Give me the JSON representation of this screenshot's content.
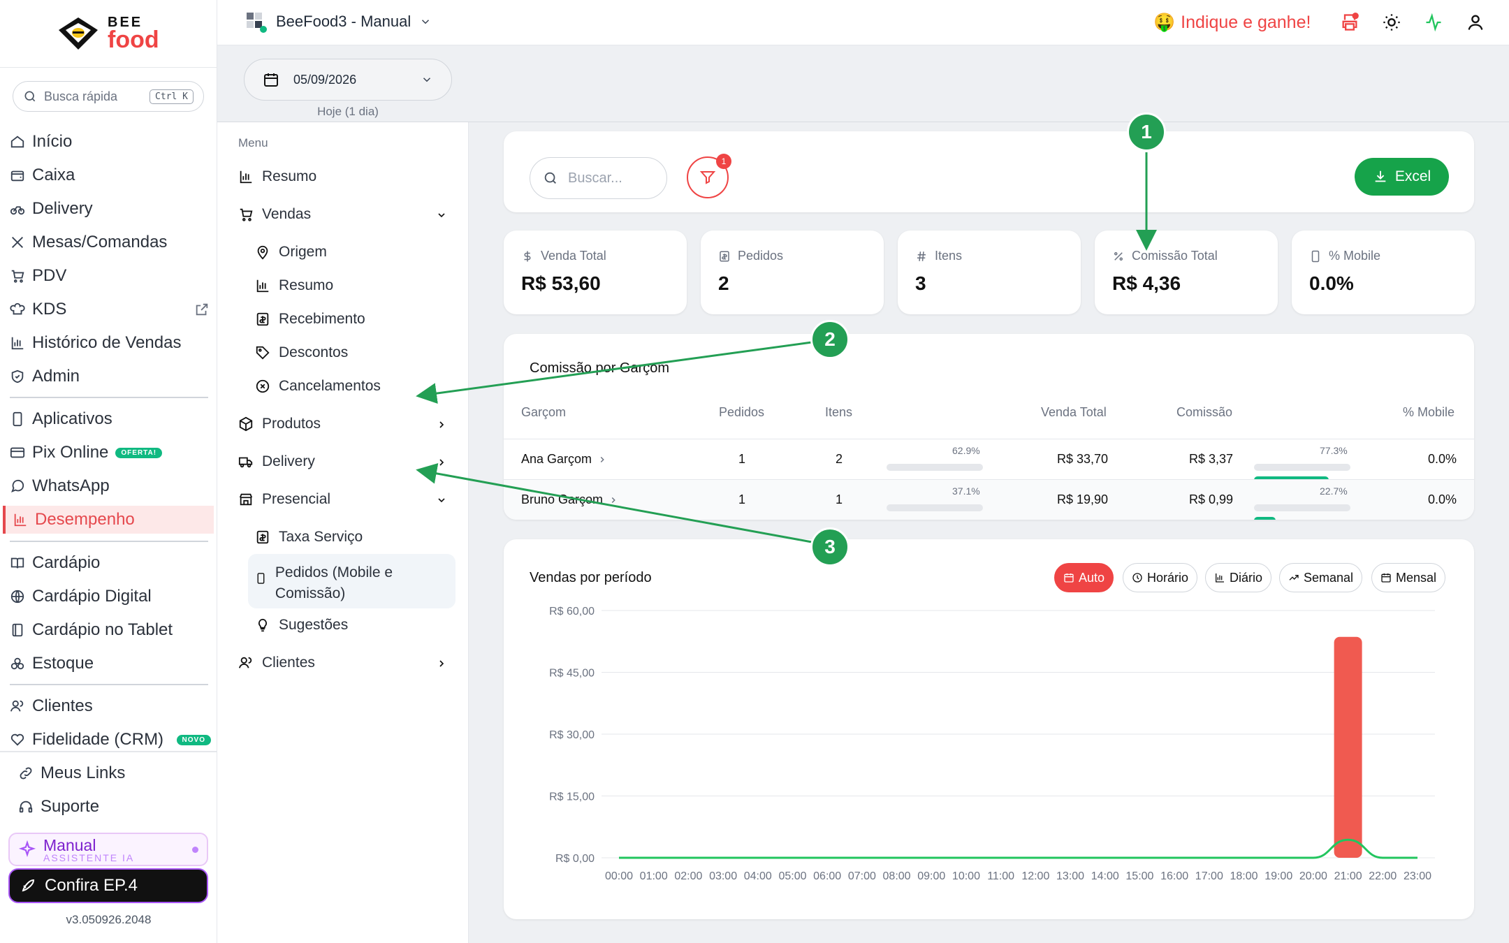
{
  "brand": {
    "top": "BEE",
    "bottom": "food"
  },
  "quick_search": {
    "placeholder": "Busca rápida",
    "shortcut": "Ctrl K"
  },
  "sidebar": {
    "items": [
      {
        "label": "Início",
        "icon": "home-icon"
      },
      {
        "label": "Caixa",
        "icon": "wallet-icon"
      },
      {
        "label": "Delivery",
        "icon": "bike-icon"
      },
      {
        "label": "Mesas/Comandas",
        "icon": "utensils-icon"
      },
      {
        "label": "PDV",
        "icon": "cart-icon"
      },
      {
        "label": "KDS",
        "icon": "chef-hat-icon"
      },
      {
        "label": "Histórico de Vendas",
        "icon": "bar-chart-icon"
      },
      {
        "label": "Admin",
        "icon": "shield-icon"
      },
      {
        "label": "Aplicativos",
        "icon": "smartphone-icon"
      },
      {
        "label": "Pix Online",
        "icon": "credit-card-icon",
        "tag": "OFERTA!"
      },
      {
        "label": "WhatsApp",
        "icon": "message-icon"
      },
      {
        "label": "Desempenho",
        "icon": "bar-chart-icon",
        "active": true
      },
      {
        "label": "Cardápio",
        "icon": "book-icon"
      },
      {
        "label": "Cardápio Digital",
        "icon": "globe-icon"
      },
      {
        "label": "Cardápio no Tablet",
        "icon": "tablet-icon"
      },
      {
        "label": "Estoque",
        "icon": "boxes-icon"
      },
      {
        "label": "Clientes",
        "icon": "users-icon"
      },
      {
        "label": "Fidelidade (CRM)",
        "icon": "heart-icon",
        "tag": "NOVO"
      }
    ],
    "bottom_links": [
      {
        "label": "Meus Links"
      },
      {
        "label": "Suporte"
      }
    ],
    "manual": {
      "title": "Manual",
      "subtitle": "ASSISTENTE IA"
    },
    "confira": "Confira EP.4",
    "version": "v3.050926.2048"
  },
  "topbar": {
    "store": "BeeFood3 - Manual",
    "refer": "Indique e ganhe!",
    "refer_emoji": "🤑"
  },
  "date": {
    "value": "05/09/2026",
    "hint": "Hoje (1 dia)"
  },
  "menu": {
    "heading": "Menu",
    "resumo": "Resumo",
    "vendas": "Vendas",
    "vendas_children": [
      "Origem",
      "Resumo",
      "Recebimento",
      "Descontos",
      "Cancelamentos"
    ],
    "produtos": "Produtos",
    "delivery": "Delivery",
    "presencial": "Presencial",
    "presencial_children": [
      "Taxa Serviço",
      "Pedidos (Mobile e Comissão)",
      "Sugestões"
    ],
    "clientes": "Clientes"
  },
  "toolbar": {
    "search_placeholder": "Buscar...",
    "filter_count": "1",
    "excel": "Excel"
  },
  "kpis": [
    {
      "label": "Venda Total",
      "value": "R$ 53,60",
      "icon": "$"
    },
    {
      "label": "Pedidos",
      "value": "2",
      "icon": "receipt"
    },
    {
      "label": "Itens",
      "value": "3",
      "icon": "#"
    },
    {
      "label": "Comissão Total",
      "value": "R$ 4,36",
      "icon": "%"
    },
    {
      "label": "% Mobile",
      "value": "0.0%",
      "icon": "phone"
    }
  ],
  "commission_table": {
    "title": "Comissão por Garçom",
    "headers": [
      "Garçom",
      "Pedidos",
      "Itens",
      "Venda Total",
      "Comissão",
      "% Mobile"
    ],
    "rows": [
      {
        "name": "Ana Garçom",
        "pedidos": "1",
        "itens": "2",
        "share": "62.9%",
        "share_value": 0.629,
        "venda": "R$ 33,70",
        "comissao": "R$ 3,37",
        "com_share": "77.3%",
        "com_share_value": 0.773,
        "mobile": "0.0%"
      },
      {
        "name": "Bruno Garçom",
        "pedidos": "1",
        "itens": "1",
        "share": "37.1%",
        "share_value": 0.371,
        "venda": "R$ 19,90",
        "comissao": "R$ 0,99",
        "com_share": "22.7%",
        "com_share_value": 0.227,
        "mobile": "0.0%"
      }
    ]
  },
  "sales_chart": {
    "title": "Vendas por período",
    "periods": [
      {
        "label": "Auto",
        "active": true
      },
      {
        "label": "Horário"
      },
      {
        "label": "Diário"
      },
      {
        "label": "Semanal"
      },
      {
        "label": "Mensal"
      }
    ],
    "colors": {
      "bar": "#f05a50",
      "line": "#22c55e"
    }
  },
  "chart_data": {
    "type": "bar",
    "title": "Vendas por período",
    "categories": [
      "00:00",
      "01:00",
      "02:00",
      "03:00",
      "04:00",
      "05:00",
      "06:00",
      "07:00",
      "08:00",
      "09:00",
      "10:00",
      "11:00",
      "12:00",
      "13:00",
      "14:00",
      "15:00",
      "16:00",
      "17:00",
      "18:00",
      "19:00",
      "20:00",
      "21:00",
      "22:00",
      "23:00"
    ],
    "values": [
      0,
      0,
      0,
      0,
      0,
      0,
      0,
      0,
      0,
      0,
      0,
      0,
      0,
      0,
      0,
      0,
      0,
      0,
      0,
      0,
      0,
      53.6,
      0,
      0
    ],
    "line_values": [
      0,
      0,
      0,
      0,
      0,
      0,
      0,
      0,
      0,
      0,
      0,
      0,
      0,
      0,
      0,
      0,
      0,
      0,
      0,
      0,
      0,
      4.36,
      0,
      0
    ],
    "ylim": [
      0,
      60
    ],
    "yticks": [
      "R$ 0,00",
      "R$ 15,00",
      "R$ 30,00",
      "R$ 45,00",
      "R$ 60,00"
    ],
    "ytick_values": [
      0,
      15,
      30,
      45,
      60
    ],
    "grid": true
  },
  "annotations": [
    "1",
    "2",
    "3"
  ],
  "colors": {
    "accent": "#ef4444",
    "green": "#16a34a",
    "annotation": "#239f54"
  }
}
